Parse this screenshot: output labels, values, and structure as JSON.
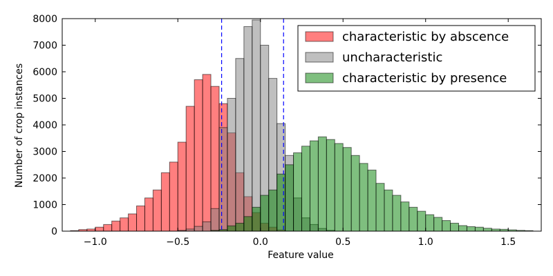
{
  "chart_data": {
    "type": "bar",
    "subtype": "overlaid-histogram",
    "title": "",
    "xlabel": "Feature value",
    "ylabel": "Number of crop instances",
    "xlim": [
      -1.2,
      1.7
    ],
    "ylim": [
      0,
      8000
    ],
    "bin_width": 0.05,
    "x_ticks": [
      -1.0,
      -0.5,
      0.0,
      0.5,
      1.0,
      1.5
    ],
    "x_tick_labels": [
      "−1.0",
      "−0.5",
      "0.0",
      "0.5",
      "1.0",
      "1.5"
    ],
    "y_ticks": [
      0,
      1000,
      2000,
      3000,
      4000,
      5000,
      6000,
      7000,
      8000
    ],
    "y_tick_labels": [
      "0",
      "1000",
      "2000",
      "3000",
      "4000",
      "5000",
      "6000",
      "7000",
      "8000"
    ],
    "threshold_lines": [
      -0.235,
      0.14
    ],
    "grid": false,
    "legend_position": "top-right",
    "series": [
      {
        "name": "characteristic by abscence",
        "color": "#ff0000",
        "opacity": 0.5,
        "x_start": [
          -1.15,
          -1.1,
          -1.05,
          -1.0,
          -0.95,
          -0.9,
          -0.85,
          -0.8,
          -0.75,
          -0.7,
          -0.65,
          -0.6,
          -0.55,
          -0.5,
          -0.45,
          -0.4,
          -0.35,
          -0.3,
          -0.25,
          -0.2,
          -0.15,
          -0.1,
          -0.05,
          0.0,
          0.05,
          0.1
        ],
        "values": [
          20,
          60,
          80,
          150,
          250,
          380,
          500,
          650,
          950,
          1250,
          1550,
          2200,
          2600,
          3350,
          4700,
          5700,
          5900,
          5450,
          4800,
          3700,
          2200,
          1300,
          700,
          300,
          150,
          50
        ]
      },
      {
        "name": "uncharacteristic",
        "color": "#808080",
        "opacity": 0.5,
        "x_start": [
          -0.5,
          -0.45,
          -0.4,
          -0.35,
          -0.3,
          -0.25,
          -0.2,
          -0.15,
          -0.1,
          -0.05,
          0.0,
          0.05,
          0.1,
          0.15,
          0.2,
          0.25,
          0.3,
          0.35,
          0.4
        ],
        "values": [
          30,
          80,
          180,
          350,
          850,
          3900,
          5000,
          6500,
          7700,
          7950,
          7000,
          5750,
          4050,
          2850,
          1250,
          500,
          250,
          100,
          30
        ]
      },
      {
        "name": "characteristic by presence",
        "color": "#008000",
        "opacity": 0.5,
        "x_start": [
          -0.3,
          -0.25,
          -0.2,
          -0.15,
          -0.1,
          -0.05,
          0.0,
          0.05,
          0.1,
          0.15,
          0.2,
          0.25,
          0.3,
          0.35,
          0.4,
          0.45,
          0.5,
          0.55,
          0.6,
          0.65,
          0.7,
          0.75,
          0.8,
          0.85,
          0.9,
          0.95,
          1.0,
          1.05,
          1.1,
          1.15,
          1.2,
          1.25,
          1.3,
          1.35,
          1.4,
          1.45,
          1.5,
          1.55,
          1.6
        ],
        "values": [
          30,
          60,
          200,
          300,
          550,
          900,
          1350,
          1550,
          2150,
          2500,
          2950,
          3200,
          3400,
          3550,
          3450,
          3300,
          3150,
          2850,
          2550,
          2300,
          1800,
          1550,
          1350,
          1100,
          900,
          750,
          620,
          520,
          400,
          300,
          210,
          170,
          150,
          110,
          80,
          70,
          50,
          30,
          20
        ]
      }
    ]
  }
}
